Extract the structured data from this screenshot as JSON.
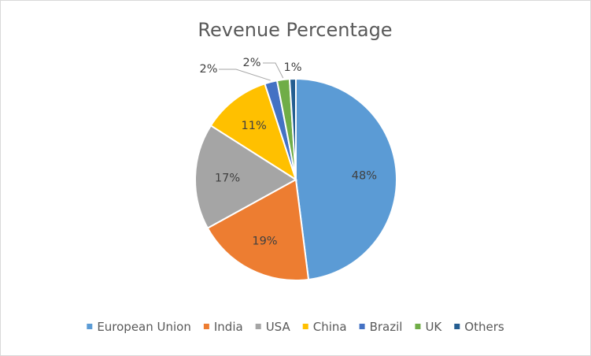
{
  "chart_data": {
    "type": "pie",
    "title": "Revenue Percentage",
    "categories": [
      "European Union",
      "India",
      "USA",
      "China",
      "Brazil",
      "UK",
      "Others"
    ],
    "values": [
      48,
      19,
      17,
      11,
      2,
      2,
      1
    ],
    "labels": [
      "48%",
      "19%",
      "17%",
      "11%",
      "2%",
      "2%",
      "1%"
    ],
    "colors": [
      "#5B9BD5",
      "#ED7D31",
      "#A5A5A5",
      "#FFC000",
      "#4472C4",
      "#70AD47",
      "#255E91"
    ],
    "legend_position": "bottom"
  }
}
